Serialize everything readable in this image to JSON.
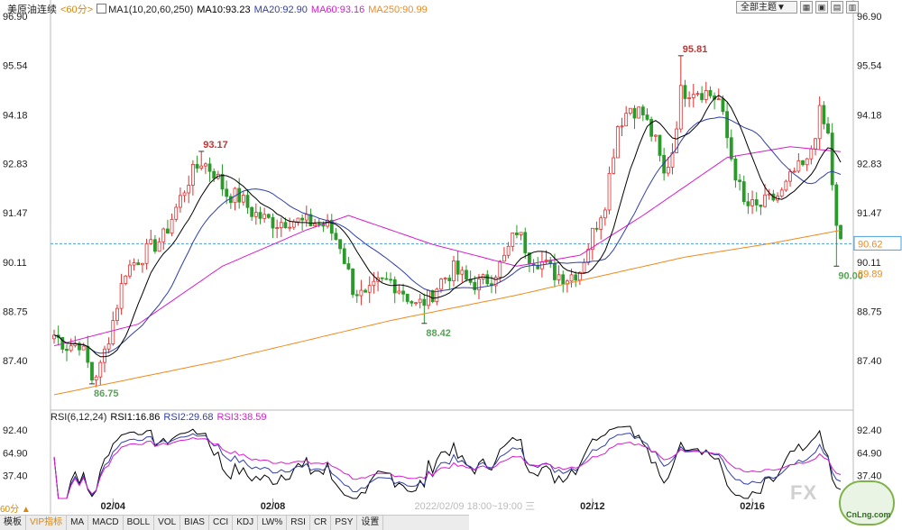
{
  "header": {
    "symbol": "美原油连续",
    "period": "<60分>",
    "ma_label": "MA1(10,20,60,250)",
    "ma10": "MA10:93.23",
    "ma20": "MA20:92.90",
    "ma60": "MA60:93.16",
    "ma250": "MA250:90.99"
  },
  "rsi_header": {
    "label": "RSI(6,12,24)",
    "rsi1": "RSI1:16.86",
    "rsi2": "RSI2:29.68",
    "rsi3": "RSI3:38.59"
  },
  "toolbar": {
    "theme_select": "全部主题▼",
    "btn1": "▦",
    "btn2": "▣",
    "btn3": "▤",
    "btn4": "▥"
  },
  "bottom_tabs": [
    "模板",
    "VIP指标",
    "MA",
    "MACD",
    "BOLL",
    "VOL",
    "BIAS",
    "CCI",
    "KDJ",
    "LW%",
    "RSI",
    "CR",
    "PSY",
    "设置"
  ],
  "period_selector": "60分 ▲",
  "watermark": "FX",
  "logo_text": "CnLng.com",
  "colors": {
    "up": "#e03030",
    "down": "#2a9a2a",
    "ma10": "#000000",
    "ma20": "#2f3ea8",
    "ma60": "#d81bd0",
    "ma250": "#f08a1c"
  },
  "chart_data": [
    {
      "type": "candlestick",
      "ylim": [
        86.1,
        97.1
      ],
      "y_ticks": [
        "96.90",
        "95.54",
        "94.18",
        "92.83",
        "91.47",
        "90.11",
        "88.75",
        "87.40"
      ],
      "x_labels": [
        {
          "index": 14,
          "label": "02/04"
        },
        {
          "index": 52,
          "label": "02/08"
        },
        {
          "index": 100,
          "label": "2022/02/09 18:00~19:00 三"
        },
        {
          "index": 128,
          "label": "02/12"
        },
        {
          "index": 166,
          "label": "02/16"
        }
      ],
      "current_price_line": 90.62,
      "current_price_label": "90.62",
      "right_labels": [
        {
          "value": 90.62,
          "text": "90.62"
        },
        {
          "value": 89.89,
          "text": "89.89"
        }
      ],
      "annotations": [
        {
          "index": 35,
          "price": 93.17,
          "text": "93.17",
          "color": "up"
        },
        {
          "index": 9,
          "price": 86.75,
          "text": "86.75",
          "color": "down"
        },
        {
          "index": 88,
          "price": 88.42,
          "text": "88.42",
          "color": "down"
        },
        {
          "index": 149,
          "price": 95.81,
          "text": "95.81",
          "color": "up"
        },
        {
          "index": 186,
          "price": 90.0,
          "text": "90.00",
          "color": "down"
        }
      ],
      "anchors": [
        [
          0,
          88.1
        ],
        [
          3,
          87.8
        ],
        [
          6,
          87.9
        ],
        [
          8,
          87.3
        ],
        [
          9,
          86.9
        ],
        [
          11,
          87.2
        ],
        [
          14,
          88.5
        ],
        [
          17,
          89.9
        ],
        [
          20,
          90.2
        ],
        [
          23,
          90.5
        ],
        [
          26,
          90.8
        ],
        [
          29,
          91.6
        ],
        [
          32,
          92.4
        ],
        [
          35,
          92.9
        ],
        [
          38,
          92.6
        ],
        [
          41,
          92.0
        ],
        [
          44,
          91.9
        ],
        [
          47,
          91.5
        ],
        [
          50,
          91.3
        ],
        [
          53,
          91.2
        ],
        [
          56,
          91.3
        ],
        [
          59,
          91.2
        ],
        [
          62,
          91.2
        ],
        [
          65,
          91.1
        ],
        [
          68,
          90.6
        ],
        [
          71,
          89.4
        ],
        [
          74,
          89.1
        ],
        [
          77,
          89.5
        ],
        [
          80,
          89.6
        ],
        [
          83,
          89.3
        ],
        [
          86,
          88.9
        ],
        [
          89,
          89.1
        ],
        [
          92,
          89.6
        ],
        [
          95,
          89.9
        ],
        [
          98,
          89.6
        ],
        [
          101,
          89.5
        ],
        [
          104,
          89.7
        ],
        [
          107,
          90.2
        ],
        [
          110,
          91.0
        ],
        [
          113,
          90.3
        ],
        [
          116,
          90.1
        ],
        [
          119,
          89.8
        ],
        [
          122,
          89.7
        ],
        [
          125,
          89.9
        ],
        [
          128,
          90.9
        ],
        [
          131,
          91.8
        ],
        [
          134,
          93.9
        ],
        [
          137,
          94.4
        ],
        [
          140,
          94.2
        ],
        [
          143,
          93.4
        ],
        [
          145,
          92.5
        ],
        [
          147,
          93.2
        ],
        [
          149,
          94.8
        ],
        [
          152,
          94.9
        ],
        [
          155,
          94.8
        ],
        [
          158,
          94.6
        ],
        [
          161,
          93.0
        ],
        [
          164,
          91.7
        ],
        [
          167,
          91.6
        ],
        [
          170,
          91.8
        ],
        [
          173,
          92.0
        ],
        [
          176,
          92.6
        ],
        [
          179,
          92.8
        ],
        [
          182,
          94.2
        ],
        [
          184,
          93.6
        ],
        [
          186,
          91.0
        ],
        [
          187,
          90.62
        ]
      ],
      "ma250_anchors": [
        [
          0,
          86.45
        ],
        [
          40,
          87.4
        ],
        [
          80,
          88.5
        ],
        [
          110,
          89.2
        ],
        [
          125,
          89.6
        ],
        [
          150,
          90.25
        ],
        [
          170,
          90.62
        ],
        [
          187,
          90.99
        ]
      ],
      "ma60_anchors": [
        [
          0,
          87.8
        ],
        [
          20,
          88.4
        ],
        [
          40,
          90.0
        ],
        [
          60,
          91.0
        ],
        [
          70,
          91.4
        ],
        [
          90,
          90.6
        ],
        [
          110,
          90.0
        ],
        [
          125,
          90.3
        ],
        [
          140,
          91.4
        ],
        [
          160,
          93.0
        ],
        [
          175,
          93.3
        ],
        [
          187,
          93.16
        ]
      ]
    },
    {
      "type": "line",
      "title": "RSI(6,12,24)",
      "ylim": [
        10,
        100
      ],
      "y_ticks": [
        "92.40",
        "64.90",
        "37.40"
      ],
      "series": [
        {
          "name": "RSI1",
          "color": "#000000"
        },
        {
          "name": "RSI2",
          "color": "#2f3ea8"
        },
        {
          "name": "RSI3",
          "color": "#d81bd0"
        }
      ]
    }
  ]
}
